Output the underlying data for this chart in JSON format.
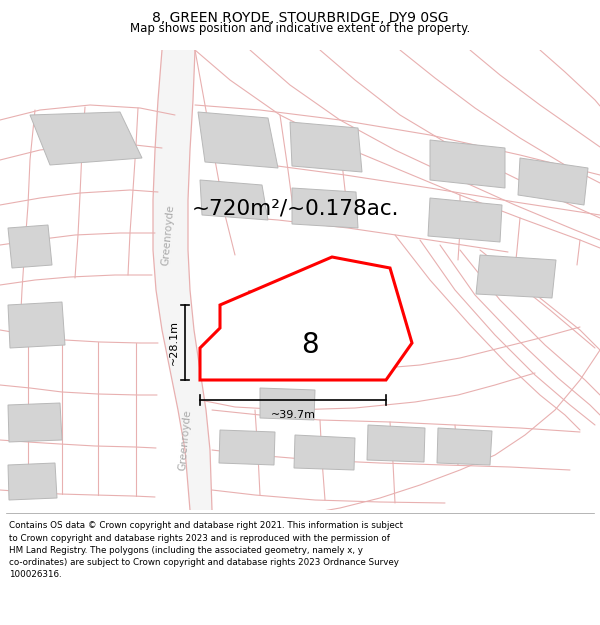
{
  "title_line1": "8, GREEN ROYDE, STOURBRIDGE, DY9 0SG",
  "title_line2": "Map shows position and indicative extent of the property.",
  "area_label": "~720m²/~0.178ac.",
  "number_label": "8",
  "dim_h": "~28.1m",
  "dim_w": "~39.7m",
  "street_label_top": "Greenroyde",
  "street_label_bottom": "Greenroyde",
  "bg_color": "#f7f7f7",
  "parcel_fill": "#e8e8e8",
  "parcel_edge": "#d0a0a0",
  "building_fill": "#d4d4d4",
  "building_edge": "#b8b8b8",
  "road_fill": "#f0f0f0",
  "road_edge": "#e0b0b0",
  "highlight_color": "#ff0000",
  "white": "#ffffff",
  "footer_line1": "Contains OS data © Crown copyright and database right 2021. This information is subject",
  "footer_line2": "to Crown copyright and database rights 2023 and is reproduced with the permission of",
  "footer_line3": "HM Land Registry. The polygons (including the associated geometry, namely x, y",
  "footer_line4": "co-ordinates) are subject to Crown copyright and database rights 2023 Ordnance Survey",
  "footer_line5": "100026316."
}
